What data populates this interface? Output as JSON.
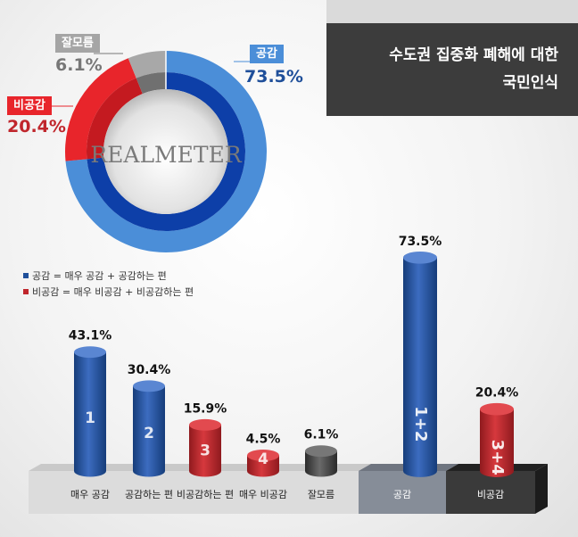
{
  "title": {
    "line1": "수도권 집중화 폐해에 대한",
    "line2": "국민인식"
  },
  "logo": "REALMETER",
  "colors": {
    "blue": "#1f4f9a",
    "blue_light": "#4b8ed8",
    "red": "#c0262c",
    "red_bright": "#e8252b",
    "gray": "#8a8a8a",
    "dark": "#3c3c3c"
  },
  "legend": [
    {
      "text": "공감 = 매우 공감 + 공감하는 편",
      "color": "#1f4f9a"
    },
    {
      "text": "비공감 = 매우 비공감 + 비공감하는 편",
      "color": "#c0262c"
    }
  ],
  "donut_labels": {
    "agree": {
      "label": "공감",
      "value": "73.5%"
    },
    "disagree": {
      "label": "비공감",
      "value": "20.4%"
    },
    "dk": {
      "label": "잘모름",
      "value": "6.1%"
    }
  },
  "chart_data": [
    {
      "type": "pie",
      "categories": [
        "공감",
        "비공감",
        "잘모름"
      ],
      "values": [
        73.5,
        20.4,
        6.1
      ]
    },
    {
      "type": "bar",
      "categories": [
        "매우 공감",
        "공감하는 편",
        "비공감하는 편",
        "매우 비공감",
        "잘모름"
      ],
      "values": [
        43.1,
        30.4,
        15.9,
        4.5,
        6.1
      ],
      "value_labels": [
        "43.1%",
        "30.4%",
        "15.9%",
        "4.5%",
        "6.1%"
      ],
      "bar_numbers": [
        "1",
        "2",
        "3",
        "4",
        ""
      ],
      "colors": [
        "#1f4f9a",
        "#1f4f9a",
        "#c0262c",
        "#c0262c",
        "#3c3c3c"
      ]
    },
    {
      "type": "bar",
      "categories": [
        "공감",
        "비공감"
      ],
      "values": [
        73.5,
        20.4
      ],
      "value_labels": [
        "73.5%",
        "20.4%"
      ],
      "bar_numbers": [
        "1+2",
        "3+4"
      ],
      "colors": [
        "#1f4f9a",
        "#c0262c"
      ]
    }
  ]
}
